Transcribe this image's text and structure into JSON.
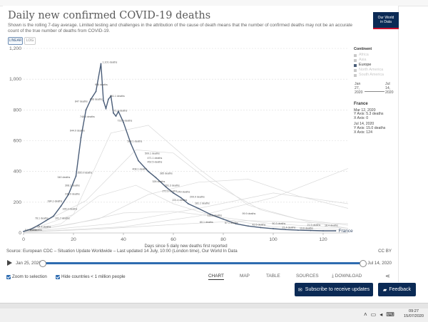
{
  "header": {
    "title": "Daily new confirmed COVID-19 deaths",
    "subtitle": "Shown is the rolling 7-day average. Limited testing and challenges in the attribution of the cause of death means that the number of confirmed deaths may not be an accurate count of the true number of deaths from COVID-19.",
    "scale_linear": "LINEAR",
    "scale_log": "LOG",
    "logo_line1": "Our World",
    "logo_line2": "in Data"
  },
  "chart_data": {
    "type": "line",
    "xlabel": "Days since 5 daily new deaths first reported",
    "ylabel": "",
    "xlim": [
      0,
      130
    ],
    "ylim": [
      0,
      1200
    ],
    "xticks": [
      "0",
      "20",
      "40",
      "60",
      "80",
      "100",
      "120"
    ],
    "yticks": [
      "0",
      "200",
      "400",
      "600",
      "800",
      "1,000",
      "1,200"
    ],
    "grid": true,
    "series": [
      {
        "name": "France",
        "color": "#4a5d78",
        "x": [
          0,
          3,
          6,
          9,
          12,
          15,
          18,
          21,
          23,
          25,
          27,
          29,
          31,
          32,
          33,
          34,
          35,
          36,
          37,
          38,
          40,
          43,
          46,
          50,
          53,
          57,
          60,
          63,
          66,
          70,
          75,
          80,
          85,
          90,
          95,
          100,
          105,
          110,
          115,
          120,
          125
        ],
        "y": [
          10,
          25,
          50,
          80,
          110,
          175,
          250,
          370,
          620,
          800,
          870,
          920,
          1101,
          860,
          810,
          870,
          890,
          780,
          760,
          790,
          720,
          580,
          470,
          400,
          360,
          300,
          260,
          230,
          190,
          160,
          120,
          90,
          60,
          45,
          35,
          28,
          22,
          18,
          16,
          14,
          14
        ]
      }
    ],
    "context_series": [
      {
        "x": [
          0,
          15,
          30,
          45,
          60,
          80,
          100,
          130
        ],
        "y": [
          5,
          60,
          240,
          310,
          190,
          90,
          40,
          20
        ]
      },
      {
        "x": [
          0,
          20,
          35,
          50,
          70,
          90,
          110,
          130
        ],
        "y": [
          5,
          120,
          650,
          700,
          420,
          180,
          90,
          50
        ]
      },
      {
        "x": [
          0,
          25,
          45,
          60,
          75,
          95,
          115,
          130
        ],
        "y": [
          5,
          210,
          540,
          520,
          330,
          150,
          70,
          30
        ]
      },
      {
        "x": [
          0,
          30,
          50,
          70,
          90,
          110,
          130
        ],
        "y": [
          5,
          90,
          250,
          330,
          350,
          240,
          160
        ]
      },
      {
        "x": [
          0,
          20,
          40,
          60,
          80,
          100,
          130
        ],
        "y": [
          5,
          60,
          130,
          140,
          100,
          60,
          30
        ]
      },
      {
        "x": [
          0,
          40,
          70,
          100,
          130
        ],
        "y": [
          5,
          40,
          110,
          230,
          420
        ]
      },
      {
        "x": [
          0,
          30,
          60,
          90,
          130
        ],
        "y": [
          5,
          25,
          55,
          80,
          60
        ]
      },
      {
        "x": [
          0,
          35,
          70,
          100,
          130
        ],
        "y": [
          5,
          60,
          160,
          260,
          190
        ]
      }
    ],
    "annotations": [
      {
        "x": 31,
        "y": 1101,
        "text": "1,101 deaths"
      },
      {
        "x": 28,
        "y": 955,
        "text": "956 deaths"
      },
      {
        "x": 34,
        "y": 880,
        "text": "861.1 deaths"
      },
      {
        "x": 26,
        "y": 860,
        "text": "856 deaths"
      },
      {
        "x": 20,
        "y": 845,
        "text": "847 deaths"
      },
      {
        "x": 35,
        "y": 785,
        "text": "771.3 deaths"
      },
      {
        "x": 22,
        "y": 745,
        "text": "748.4 deaths"
      },
      {
        "x": 37,
        "y": 720,
        "text": "723.9 deaths"
      },
      {
        "x": 18,
        "y": 655,
        "text": "644.9 deaths"
      },
      {
        "x": 41,
        "y": 585,
        "text": "588.1 deaths"
      },
      {
        "x": 48,
        "y": 508,
        "text": "509.1 deaths"
      },
      {
        "x": 49,
        "y": 478,
        "text": "471.1 deaths"
      },
      {
        "x": 49,
        "y": 452,
        "text": "452.5 deaths"
      },
      {
        "x": 43,
        "y": 405,
        "text": "408.1 deaths"
      },
      {
        "x": 54,
        "y": 378,
        "text": "385 deaths"
      },
      {
        "x": 21,
        "y": 382,
        "text": "355.9 deaths"
      },
      {
        "x": 13,
        "y": 352,
        "text": "340 deaths"
      },
      {
        "x": 51,
        "y": 325,
        "text": "326 deaths"
      },
      {
        "x": 56,
        "y": 300,
        "text": "291.3 deaths"
      },
      {
        "x": 16,
        "y": 300,
        "text": "308.1 deaths"
      },
      {
        "x": 55,
        "y": 262,
        "text": "272.6 deaths"
      },
      {
        "x": 61,
        "y": 258,
        "text": "249 deaths"
      },
      {
        "x": 16,
        "y": 243,
        "text": "230.9 deaths"
      },
      {
        "x": 66,
        "y": 225,
        "text": "209.9 deaths"
      },
      {
        "x": 59,
        "y": 205,
        "text": "221.4 deaths"
      },
      {
        "x": 9,
        "y": 198,
        "text": "184.1 deaths"
      },
      {
        "x": 68,
        "y": 182,
        "text": "181.1 deaths"
      },
      {
        "x": 15,
        "y": 145,
        "text": "165.3 deaths"
      },
      {
        "x": 87,
        "y": 115,
        "text": "99.9 deaths"
      },
      {
        "x": 73,
        "y": 105,
        "text": "112.9 deaths"
      },
      {
        "x": 4,
        "y": 85,
        "text": "78.1 deaths"
      },
      {
        "x": 12,
        "y": 85,
        "text": "101.7 deaths"
      },
      {
        "x": 5,
        "y": 30,
        "text": "64.4 deaths"
      },
      {
        "x": 70,
        "y": 60,
        "text": "60.1 deaths"
      },
      {
        "x": 80,
        "y": 55,
        "text": "57.1 deaths"
      },
      {
        "x": 99,
        "y": 50,
        "text": "50.3 deaths"
      },
      {
        "x": 91,
        "y": 45,
        "text": "42.6 deaths"
      },
      {
        "x": 113,
        "y": 42,
        "text": "21.5 deaths"
      },
      {
        "x": 120,
        "y": 40,
        "text": "18.4 deaths"
      },
      {
        "x": 103,
        "y": 25,
        "text": "21.4 deaths"
      },
      {
        "x": 110,
        "y": 22,
        "text": "13.6 deaths"
      },
      {
        "x": 0,
        "y": 10,
        "text": "5.1 deaths"
      },
      {
        "x": 2,
        "y": 10,
        "text": "9.4 deaths"
      }
    ],
    "end_label": "France"
  },
  "legend": {
    "title": "Continent",
    "items": [
      {
        "label": "Africa",
        "color": "#c9c9c9",
        "active": false
      },
      {
        "label": "Asia",
        "color": "#c9c9c9",
        "active": false
      },
      {
        "label": "Europe",
        "color": "#4a5d78",
        "active": true
      },
      {
        "label": "North America",
        "color": "#c9c9c9",
        "active": false
      },
      {
        "label": "South America",
        "color": "#c9c9c9",
        "active": false
      }
    ]
  },
  "timeline_mini": {
    "start": "Jan 27, 2020",
    "start_l1": "Jan",
    "start_l2": "27,",
    "start_l3": "2020",
    "end": "Jul 14, 2020",
    "end_l1": "Jul",
    "end_l2": "14,",
    "end_l3": "2020"
  },
  "tooltip": {
    "title": "France",
    "block1": [
      "Mar 12, 2020",
      "Y Axis: 5.3 deaths",
      "X Axis: 0"
    ],
    "block2": [
      "Jul 14, 2020",
      "Y Axis: 15.0 deaths",
      "X Axis: 124"
    ]
  },
  "footer": {
    "source": "Source: European CDC – Situation Update Worldwide – Last updated 14 July, 10:00 (London time), Our World In Data",
    "license": "CC BY",
    "date_start": "Jan 25, 2020",
    "date_end": "Jul 14, 2020",
    "zoom_label": "Zoom to selection",
    "hide_label": "Hide countries < 1 million people",
    "tabs": [
      "CHART",
      "MAP",
      "TABLE",
      "SOURCES",
      "DOWNLOAD"
    ],
    "share_icon": "share-icon"
  },
  "buttons": {
    "subscribe": "Subscribe to receive updates",
    "feedback": "Feedback"
  },
  "taskbar": {
    "time": "09:27",
    "date": "15/07/2020"
  }
}
